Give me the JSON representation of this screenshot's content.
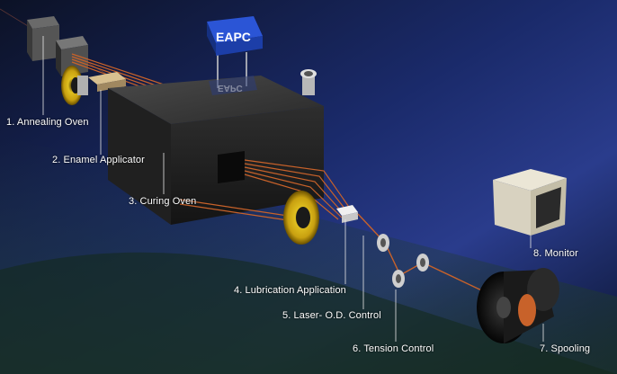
{
  "title_sign": "EAPC",
  "colors": {
    "background": "#0a0f1e",
    "wire": "#c8622a",
    "sign": "#1f45b8",
    "label": "#ffffff"
  },
  "components": [
    {
      "id": "annealing-oven",
      "label": "1. Annealing Oven"
    },
    {
      "id": "enamel-applicator",
      "label": "2. Enamel Applicator"
    },
    {
      "id": "curing-oven",
      "label": "3. Curing Oven"
    },
    {
      "id": "lubrication-application",
      "label": "4. Lubrication Application"
    },
    {
      "id": "laser-od-control",
      "label": "5. Laser- O.D. Control"
    },
    {
      "id": "tension-control",
      "label": "6. Tension Control"
    },
    {
      "id": "spooling",
      "label": "7. Spooling"
    },
    {
      "id": "monitor",
      "label": "8. Monitor"
    }
  ]
}
